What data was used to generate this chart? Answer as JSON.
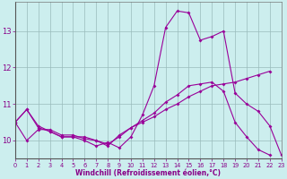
{
  "xlabel": "Windchill (Refroidissement éolien,°C)",
  "x": [
    0,
    1,
    2,
    3,
    4,
    5,
    6,
    7,
    8,
    9,
    10,
    11,
    12,
    13,
    14,
    15,
    16,
    17,
    18,
    19,
    20,
    21,
    22,
    23
  ],
  "line1": [
    10.5,
    10.85,
    10.35,
    10.25,
    10.1,
    10.1,
    10.0,
    9.85,
    9.95,
    9.8,
    10.1,
    10.7,
    11.5,
    13.1,
    13.55,
    13.5,
    12.75,
    12.85,
    13.0,
    11.3,
    11.0,
    10.8,
    10.4,
    9.6
  ],
  "line2": [
    10.5,
    10.0,
    10.3,
    10.3,
    10.15,
    10.15,
    10.05,
    10.0,
    9.85,
    10.15,
    10.35,
    10.55,
    10.75,
    11.05,
    11.25,
    11.5,
    11.55,
    11.6,
    11.35,
    10.5,
    10.1,
    9.75,
    9.6,
    null
  ],
  "line3": [
    10.5,
    10.85,
    10.4,
    10.25,
    10.1,
    10.1,
    10.1,
    10.0,
    9.9,
    10.1,
    10.35,
    10.5,
    10.65,
    10.85,
    11.0,
    11.2,
    11.35,
    11.5,
    11.55,
    11.6,
    11.7,
    11.8,
    11.9,
    null
  ],
  "color": "#990099",
  "bg_color": "#cceeee",
  "grid_color": "#99bbbb",
  "ylim": [
    9.5,
    13.8
  ],
  "xlim": [
    0,
    23
  ],
  "yticks": [
    10,
    11,
    12,
    13
  ],
  "xticks": [
    0,
    1,
    2,
    3,
    4,
    5,
    6,
    7,
    8,
    9,
    10,
    11,
    12,
    13,
    14,
    15,
    16,
    17,
    18,
    19,
    20,
    21,
    22,
    23
  ],
  "tick_label_color": "#880088",
  "xlabel_color": "#880088"
}
